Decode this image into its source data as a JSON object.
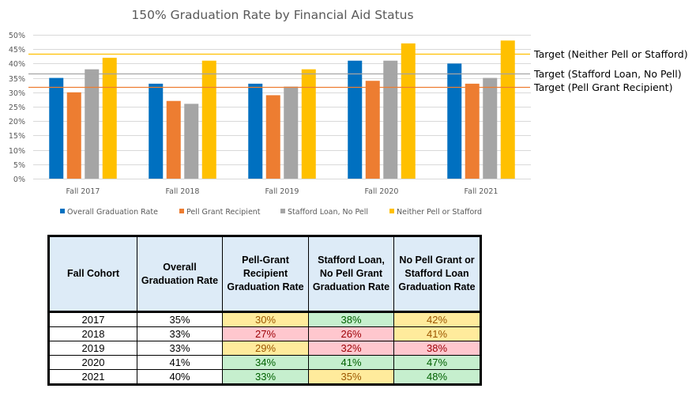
{
  "chart_data": {
    "type": "bar",
    "title": "150% Graduation Rate by Financial Aid Status",
    "xlabel": "",
    "ylabel": "",
    "ylim": [
      0,
      50
    ],
    "y_ticks": [
      "0%",
      "5%",
      "10%",
      "15%",
      "20%",
      "25%",
      "30%",
      "35%",
      "40%",
      "45%",
      "50%"
    ],
    "y_tick_values": [
      0,
      5,
      10,
      15,
      20,
      25,
      30,
      35,
      40,
      45,
      50
    ],
    "grid": true,
    "legend_position": "bottom",
    "categories": [
      "Fall 2017",
      "Fall 2018",
      "Fall 2019",
      "Fall 2020",
      "Fall 2021"
    ],
    "series": [
      {
        "name": "Overall Graduation Rate",
        "color": "#0070C0",
        "values": [
          35,
          33,
          33,
          41,
          40
        ]
      },
      {
        "name": "Pell Grant Recipient",
        "color": "#ED7D31",
        "values": [
          30,
          27,
          29,
          34,
          33
        ]
      },
      {
        "name": "Stafford Loan, No Pell",
        "color": "#A5A5A5",
        "values": [
          38,
          26,
          32,
          41,
          35
        ]
      },
      {
        "name": "Neither Pell or Stafford",
        "color": "#FFC000",
        "values": [
          42,
          41,
          38,
          47,
          48
        ]
      }
    ],
    "target_lines": [
      {
        "label": "Target (Neither Pell or Stafford)",
        "value": 43.5,
        "color": "#FFC000"
      },
      {
        "label": "Target (Stafford Loan, No Pell)",
        "value": 36.5,
        "color": "#A5A5A5"
      },
      {
        "label": "Target (Pell Grant Recipient)",
        "value": 32,
        "color": "#ED7D31"
      }
    ]
  },
  "table": {
    "headers": [
      [
        "Fall Cohort"
      ],
      [
        "Overall",
        "Graduation Rate"
      ],
      [
        "Pell-Grant",
        "Recipient",
        "Graduation Rate"
      ],
      [
        "Stafford Loan,",
        "No Pell Grant",
        "Graduation Rate"
      ],
      [
        "No Pell Grant or",
        "Stafford Loan",
        "Graduation Rate"
      ]
    ],
    "rows": [
      {
        "cells": [
          "2017",
          "35%",
          "30%",
          "38%",
          "42%"
        ],
        "status": [
          "none",
          "none",
          "yellow",
          "green",
          "yellow"
        ]
      },
      {
        "cells": [
          "2018",
          "33%",
          "27%",
          "26%",
          "41%"
        ],
        "status": [
          "none",
          "none",
          "red",
          "red",
          "yellow"
        ]
      },
      {
        "cells": [
          "2019",
          "33%",
          "29%",
          "32%",
          "38%"
        ],
        "status": [
          "none",
          "none",
          "yellow",
          "red",
          "red"
        ]
      },
      {
        "cells": [
          "2020",
          "41%",
          "34%",
          "41%",
          "47%"
        ],
        "status": [
          "none",
          "none",
          "green",
          "green",
          "green"
        ]
      },
      {
        "cells": [
          "2021",
          "40%",
          "33%",
          "35%",
          "48%"
        ],
        "status": [
          "none",
          "none",
          "green",
          "yellow",
          "green"
        ]
      }
    ],
    "status_colors": {
      "yellow": {
        "fill": "#FFEB9C",
        "text": "#9C5700"
      },
      "green": {
        "fill": "#C6EFCE",
        "text": "#006100"
      },
      "red": {
        "fill": "#FFC7CE",
        "text": "#9C0006"
      },
      "none": {
        "fill": "#FFFFFF",
        "text": "#000000"
      }
    }
  }
}
